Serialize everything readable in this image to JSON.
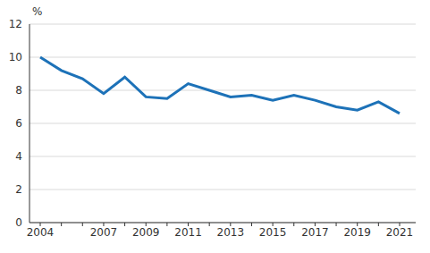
{
  "chart_data": {
    "type": "line",
    "y_label": "%",
    "categories": [
      "2004",
      null,
      null,
      "2007",
      null,
      "2009",
      null,
      "2011",
      null,
      "2013",
      null,
      "2015",
      null,
      "2017",
      null,
      "2019",
      null,
      "2021"
    ],
    "values": [
      10.0,
      9.2,
      8.7,
      7.8,
      8.8,
      7.6,
      7.5,
      8.4,
      8.0,
      7.6,
      7.7,
      7.4,
      7.7,
      7.4,
      7.0,
      6.8,
      7.3,
      6.6
    ],
    "color": "#1d72b8",
    "ylim": [
      0,
      12
    ],
    "yticks": [
      0,
      2,
      4,
      6,
      8,
      10,
      12
    ],
    "grid": true
  }
}
